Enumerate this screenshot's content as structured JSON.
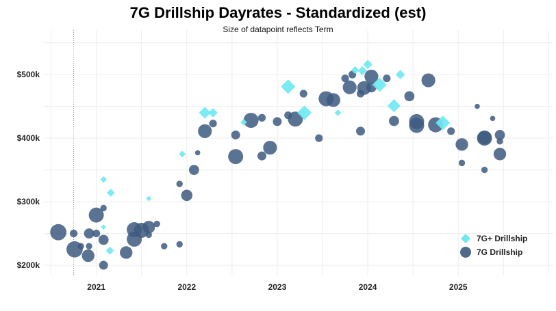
{
  "chart_data": {
    "type": "scatter",
    "title": "7G Drillship Dayrates - Standardized (est)",
    "subtitle": "Size of datapoint reflects Term",
    "xlabel": "",
    "ylabel": "",
    "xlim": [
      2020.42,
      2026.05
    ],
    "ylim": [
      185,
      555
    ],
    "x_ticks": [
      {
        "value": 2021.0,
        "label": "2021"
      },
      {
        "value": 2022.0,
        "label": "2022"
      },
      {
        "value": 2023.0,
        "label": "2023"
      },
      {
        "value": 2024.0,
        "label": "2024"
      },
      {
        "value": 2025.0,
        "label": "2025"
      }
    ],
    "y_ticks": [
      {
        "value": 200,
        "label": "$200k"
      },
      {
        "value": 300,
        "label": "$300k"
      },
      {
        "value": 400,
        "label": "$400k"
      },
      {
        "value": 500,
        "label": "$500k"
      }
    ],
    "x_grid": [
      2020.5,
      2021.0,
      2021.5,
      2022.0,
      2022.5,
      2023.0,
      2023.5,
      2024.0,
      2024.5,
      2025.0,
      2025.5,
      2026.0
    ],
    "reference_line_x": 2020.75,
    "legend_position": "bottom-right",
    "series": [
      {
        "name": "7G+ Drillship",
        "marker": "diamond",
        "color": "#6fe8f2",
        "points": [
          {
            "x": 2021.08,
            "y": 335,
            "size": 3
          },
          {
            "x": 2021.16,
            "y": 314,
            "size": 4
          },
          {
            "x": 2021.08,
            "y": 260,
            "size": 2
          },
          {
            "x": 2021.15,
            "y": 223,
            "size": 4
          },
          {
            "x": 2021.58,
            "y": 305,
            "size": 2
          },
          {
            "x": 2021.95,
            "y": 375,
            "size": 3
          },
          {
            "x": 2022.2,
            "y": 440,
            "size": 7
          },
          {
            "x": 2022.29,
            "y": 440,
            "size": 5
          },
          {
            "x": 2022.63,
            "y": 425,
            "size": 3
          },
          {
            "x": 2023.12,
            "y": 481,
            "size": 9
          },
          {
            "x": 2023.3,
            "y": 440,
            "size": 9
          },
          {
            "x": 2023.67,
            "y": 440,
            "size": 3
          },
          {
            "x": 2023.86,
            "y": 507,
            "size": 4
          },
          {
            "x": 2023.94,
            "y": 506,
            "size": 5
          },
          {
            "x": 2024.0,
            "y": 516,
            "size": 5
          },
          {
            "x": 2024.13,
            "y": 484,
            "size": 9
          },
          {
            "x": 2024.29,
            "y": 451,
            "size": 8
          },
          {
            "x": 2024.36,
            "y": 500,
            "size": 5
          },
          {
            "x": 2024.83,
            "y": 424,
            "size": 9
          }
        ]
      },
      {
        "name": "7G Drillship",
        "marker": "circle",
        "color": "#3e5a80",
        "points": [
          {
            "x": 2020.58,
            "y": 252,
            "size": 11
          },
          {
            "x": 2020.75,
            "y": 250,
            "size": 4
          },
          {
            "x": 2020.76,
            "y": 225,
            "size": 11
          },
          {
            "x": 2020.83,
            "y": 230,
            "size": 3
          },
          {
            "x": 2020.92,
            "y": 250,
            "size": 6
          },
          {
            "x": 2020.92,
            "y": 230,
            "size": 3
          },
          {
            "x": 2020.91,
            "y": 215,
            "size": 8
          },
          {
            "x": 2021.0,
            "y": 250,
            "size": 4
          },
          {
            "x": 2021.0,
            "y": 279,
            "size": 10
          },
          {
            "x": 2021.08,
            "y": 290,
            "size": 3
          },
          {
            "x": 2021.08,
            "y": 240,
            "size": 6
          },
          {
            "x": 2021.08,
            "y": 200,
            "size": 5
          },
          {
            "x": 2021.33,
            "y": 220,
            "size": 8
          },
          {
            "x": 2021.42,
            "y": 256,
            "size": 10
          },
          {
            "x": 2021.42,
            "y": 241,
            "size": 10
          },
          {
            "x": 2021.5,
            "y": 255,
            "size": 10
          },
          {
            "x": 2021.58,
            "y": 260,
            "size": 8
          },
          {
            "x": 2021.58,
            "y": 248,
            "size": 3
          },
          {
            "x": 2021.67,
            "y": 265,
            "size": 3
          },
          {
            "x": 2021.75,
            "y": 230,
            "size": 3
          },
          {
            "x": 2021.92,
            "y": 328,
            "size": 3
          },
          {
            "x": 2021.92,
            "y": 233,
            "size": 3
          },
          {
            "x": 2022.0,
            "y": 310,
            "size": 7
          },
          {
            "x": 2022.08,
            "y": 350,
            "size": 6
          },
          {
            "x": 2022.12,
            "y": 377,
            "size": 2
          },
          {
            "x": 2022.2,
            "y": 411,
            "size": 9
          },
          {
            "x": 2022.29,
            "y": 423,
            "size": 4
          },
          {
            "x": 2022.54,
            "y": 371,
            "size": 10
          },
          {
            "x": 2022.54,
            "y": 405,
            "size": 5
          },
          {
            "x": 2022.71,
            "y": 428,
            "size": 10
          },
          {
            "x": 2022.83,
            "y": 432,
            "size": 4
          },
          {
            "x": 2022.83,
            "y": 372,
            "size": 5
          },
          {
            "x": 2022.92,
            "y": 385,
            "size": 9
          },
          {
            "x": 2023.0,
            "y": 426,
            "size": 5
          },
          {
            "x": 2023.12,
            "y": 436,
            "size": 4
          },
          {
            "x": 2023.2,
            "y": 430,
            "size": 10
          },
          {
            "x": 2023.29,
            "y": 470,
            "size": 4
          },
          {
            "x": 2023.46,
            "y": 400,
            "size": 4
          },
          {
            "x": 2023.54,
            "y": 462,
            "size": 10
          },
          {
            "x": 2023.62,
            "y": 460,
            "size": 9
          },
          {
            "x": 2023.75,
            "y": 494,
            "size": 4
          },
          {
            "x": 2023.8,
            "y": 480,
            "size": 9
          },
          {
            "x": 2023.83,
            "y": 500,
            "size": 4
          },
          {
            "x": 2023.92,
            "y": 470,
            "size": 4
          },
          {
            "x": 2023.92,
            "y": 411,
            "size": 5
          },
          {
            "x": 2023.96,
            "y": 479,
            "size": 9
          },
          {
            "x": 2024.04,
            "y": 497,
            "size": 9
          },
          {
            "x": 2024.04,
            "y": 480,
            "size": 6
          },
          {
            "x": 2024.21,
            "y": 494,
            "size": 4
          },
          {
            "x": 2024.29,
            "y": 427,
            "size": 6
          },
          {
            "x": 2024.46,
            "y": 466,
            "size": 6
          },
          {
            "x": 2024.54,
            "y": 426,
            "size": 10
          },
          {
            "x": 2024.54,
            "y": 420,
            "size": 10
          },
          {
            "x": 2024.67,
            "y": 491,
            "size": 9
          },
          {
            "x": 2024.75,
            "y": 421,
            "size": 10
          },
          {
            "x": 2024.92,
            "y": 411,
            "size": 4
          },
          {
            "x": 2025.04,
            "y": 390,
            "size": 8
          },
          {
            "x": 2025.04,
            "y": 361,
            "size": 3
          },
          {
            "x": 2025.21,
            "y": 450,
            "size": 2
          },
          {
            "x": 2025.29,
            "y": 401,
            "size": 9
          },
          {
            "x": 2025.29,
            "y": 400,
            "size": 10
          },
          {
            "x": 2025.29,
            "y": 350,
            "size": 3
          },
          {
            "x": 2025.38,
            "y": 431,
            "size": 2
          },
          {
            "x": 2025.46,
            "y": 405,
            "size": 6
          },
          {
            "x": 2025.46,
            "y": 395,
            "size": 3
          },
          {
            "x": 2025.46,
            "y": 375,
            "size": 8
          }
        ]
      }
    ]
  }
}
